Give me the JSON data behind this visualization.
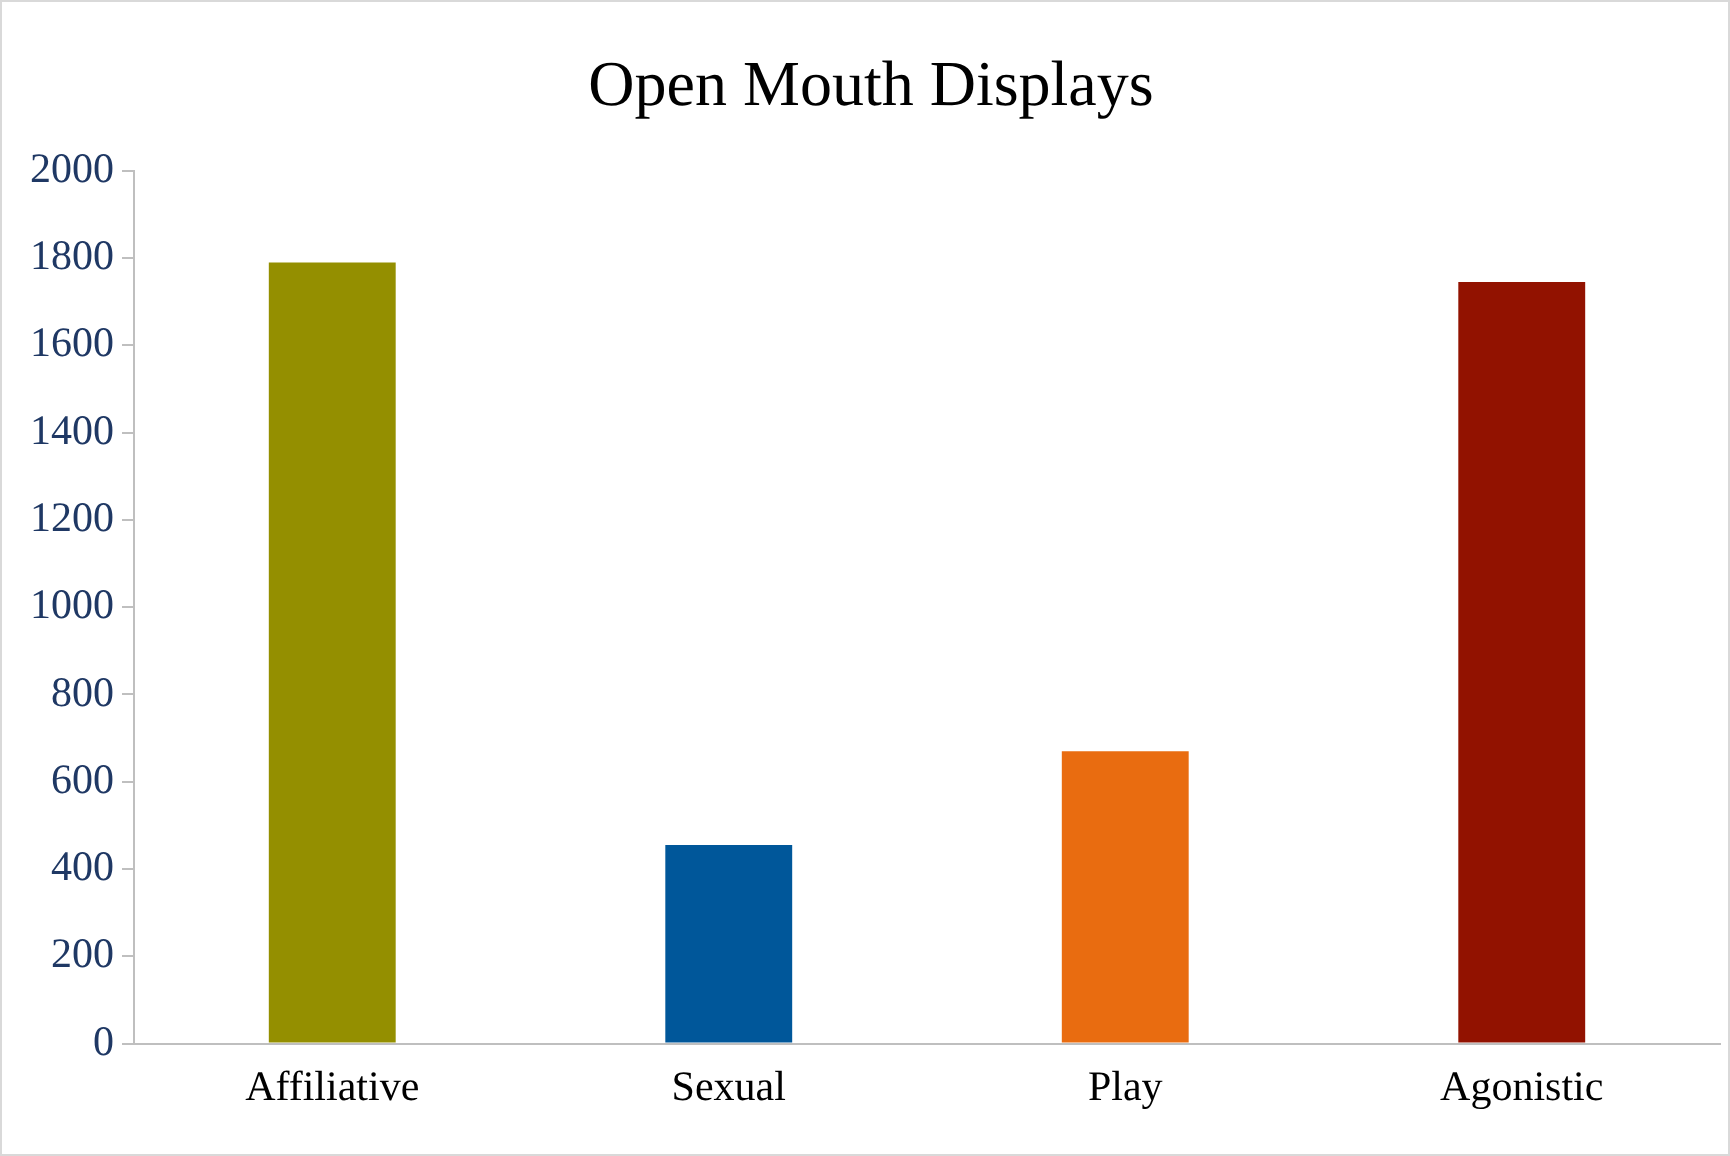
{
  "chart_data": {
    "type": "bar",
    "title": "Open Mouth Displays",
    "categories": [
      "Affiliative",
      "Sexual",
      "Play",
      "Agonistic"
    ],
    "values": [
      1790,
      455,
      670,
      1745
    ],
    "colors": [
      "#948f00",
      "#00579a",
      "#e96c10",
      "#921200"
    ],
    "ylim": [
      0,
      2000
    ],
    "yticks": [
      0,
      200,
      400,
      600,
      800,
      1000,
      1200,
      1400,
      1600,
      1800,
      2000
    ],
    "grid": false,
    "legend": false
  }
}
